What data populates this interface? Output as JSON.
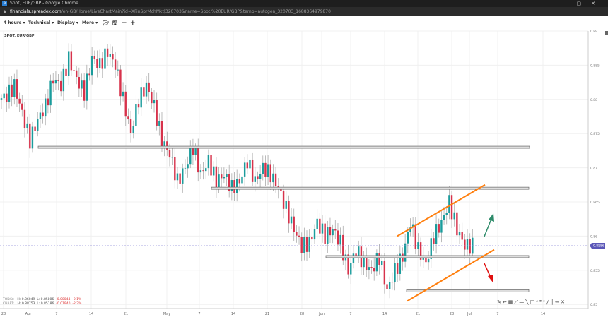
{
  "window": {
    "title": "Spot, EUR/GBP - Google Chrome",
    "url_host": "financials.spreadex.com",
    "url_path": "/en-GB/Home/LiveChartMain?id=XFinSprMchMkt|320703&name=Spot.%20EUR/GBP&temp=autogen_320703_1688364979870"
  },
  "toolbar": {
    "interval": "4 hours",
    "technical": "Technical",
    "display": "Display",
    "more": "More"
  },
  "chart": {
    "label": "SPOT, EUR/GBP",
    "current_price": "0.8586"
  },
  "stats": {
    "today": {
      "label": "TODAY:",
      "high": "H: 0.86049",
      "low": "L: 0.85806",
      "change": "-0.00044",
      "pct": "-0.1%"
    },
    "chart": {
      "label": "CHART:",
      "high": "H: 0.88753",
      "low": "L: 0.85186",
      "change": "-0.01940",
      "pct": "-2.2%"
    }
  },
  "colors": {
    "up": "#1a9c9c",
    "down": "#d7324b",
    "channel": "#ff7f0e",
    "bull_arrow": "#2e8b6a",
    "bear_arrow": "#e01010",
    "price_tag": "#5b57b8"
  },
  "chart_data": {
    "type": "candlestick",
    "title": "SPOT, EUR/GBP",
    "ylim": [
      0.85,
      0.89
    ],
    "y_ticks": [
      "0.89",
      "0.885",
      "0.88",
      "0.875",
      "0.87",
      "0.865",
      "0.86",
      "0.855",
      "0.85"
    ],
    "x_ticks": [
      "28",
      "Apr",
      "7",
      "14",
      "21",
      "May",
      "7",
      "14",
      "21",
      "28",
      "Jun",
      "7",
      "14",
      "21",
      "28",
      "Jul",
      "7",
      "14"
    ],
    "closes": [
      0.88,
      0.8805,
      0.882,
      0.878,
      0.874,
      0.877,
      0.879,
      0.883,
      0.882,
      0.886,
      0.883,
      0.881,
      0.886,
      0.885,
      0.887,
      0.885,
      0.88,
      0.875,
      0.88,
      0.882,
      0.879,
      0.874,
      0.872,
      0.868,
      0.87,
      0.873,
      0.869,
      0.871,
      0.868,
      0.869,
      0.867,
      0.868,
      0.871,
      0.868,
      0.87,
      0.869,
      0.867,
      0.864,
      0.861,
      0.8585,
      0.859,
      0.862,
      0.86,
      0.861,
      0.859,
      0.855,
      0.858,
      0.856,
      0.855,
      0.857,
      0.852,
      0.855,
      0.857,
      0.862,
      0.858,
      0.856,
      0.86,
      0.862,
      0.865,
      0.861,
      0.8586,
      0.8586
    ],
    "support_levels": [
      0.873,
      0.867,
      0.857,
      0.852
    ],
    "channel_upper": [
      0.86,
      0.8675
    ],
    "channel_lower": [
      0.8505,
      0.858
    ]
  }
}
